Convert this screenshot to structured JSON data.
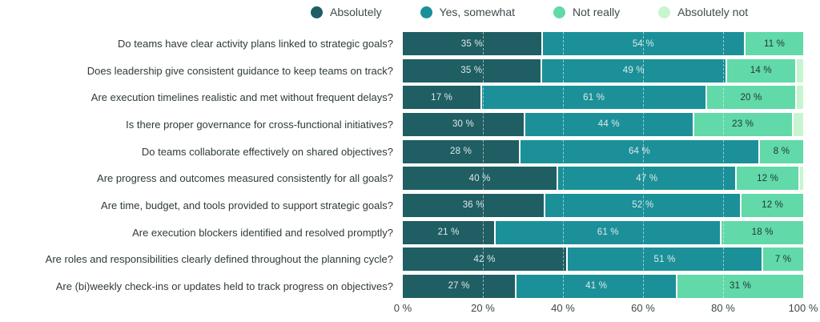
{
  "chart_data": {
    "type": "bar",
    "orientation": "horizontal",
    "stacked": true,
    "unit": "%",
    "legend_position": "top",
    "grid": true,
    "xlim": [
      0,
      100
    ],
    "xticks": [
      "0 %",
      "20 %",
      "40 %",
      "60 %",
      "80 %",
      "100 %"
    ],
    "legend": [
      {
        "label": "Absolutely",
        "color": "#1f5e63"
      },
      {
        "label": "Yes, somewhat",
        "color": "#1b9099"
      },
      {
        "label": "Not really",
        "color": "#61d9a8"
      },
      {
        "label": "Absolutely not",
        "color": "#c7f5cf"
      }
    ],
    "categories": [
      "Do teams have clear activity plans linked to strategic goals?",
      "Does leadership give consistent guidance to keep teams on track?",
      "Are execution timelines realistic and met without frequent delays?",
      "Is there proper governance for cross-functional initiatives?",
      "Do teams collaborate effectively on shared objectives?",
      "Are progress and outcomes measured consistently for all goals?",
      "Are time, budget, and tools provided to support strategic goals?",
      "Are execution blockers identified and resolved promptly?",
      "Are roles and responsibilities clearly defined throughout the planning cycle?",
      "Are (bi)weekly check-ins or updates held to track progress on objectives?"
    ],
    "series": [
      {
        "name": "Absolutely",
        "values": [
          35,
          35,
          17,
          30,
          28,
          40,
          36,
          21,
          42,
          27
        ]
      },
      {
        "name": "Yes, somewhat",
        "values": [
          54,
          49,
          61,
          44,
          64,
          47,
          52,
          61,
          51,
          41
        ]
      },
      {
        "name": "Not really",
        "values": [
          11,
          14,
          20,
          23,
          8,
          12,
          12,
          18,
          7,
          31
        ]
      },
      {
        "name": "Absolutely not",
        "values": [
          0,
          2,
          2,
          3,
          0,
          1,
          0,
          0,
          0,
          0
        ]
      }
    ],
    "value_label_suffix": " %",
    "value_label_min_show": 5
  }
}
